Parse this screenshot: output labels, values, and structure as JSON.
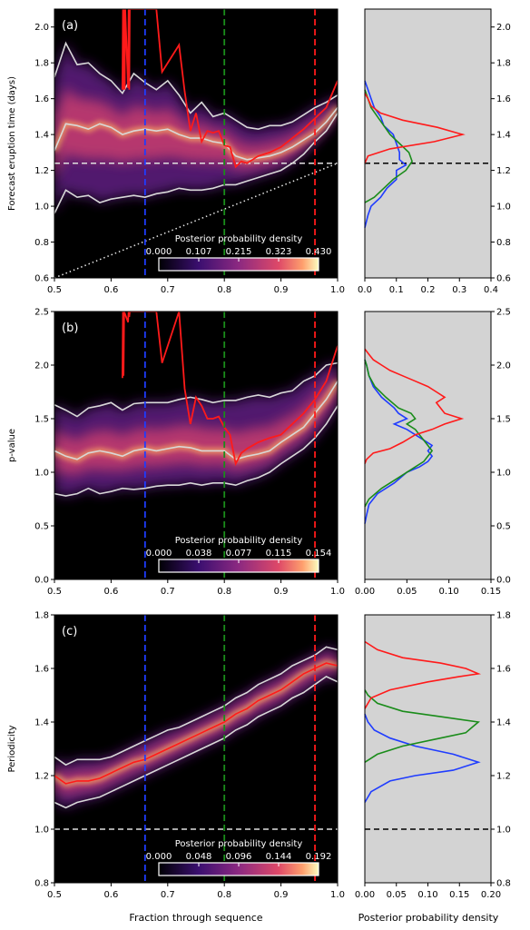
{
  "figure": {
    "xlabel_left": "Fraction through sequence",
    "xlabel_right": "Posterior probability density",
    "colorbar_title": "Posterior probability density"
  },
  "colors": {
    "background": "#000000",
    "side_background": "#d3d3d3",
    "red": "#ff1a1a",
    "blue": "#1f3cff",
    "green": "#1a8c1a",
    "white_band": "#d8d8d8"
  },
  "vlines": [
    {
      "x": 0.66,
      "color": "blue"
    },
    {
      "x": 0.8,
      "color": "green"
    },
    {
      "x": 0.96,
      "color": "red"
    }
  ],
  "chart_data": [
    {
      "type": "heatmap",
      "panel_label": "(a)",
      "ylabel": "Forecast eruption time (days)",
      "xlim": [
        0.5,
        1.0
      ],
      "ylim": [
        0.6,
        2.1
      ],
      "yticks": [
        "0.6",
        "0.8",
        "1.0",
        "1.2",
        "1.4",
        "1.6",
        "1.8",
        "2.0"
      ],
      "xticks": [
        "0.5",
        "0.6",
        "0.7",
        "0.8",
        "0.9",
        "1.0"
      ],
      "hline": 1.24,
      "dotted_diagonal": [
        [
          0.5,
          0.6
        ],
        [
          1.0,
          1.24
        ]
      ],
      "colorbar_ticks": [
        "0.000",
        "0.107",
        "0.215",
        "0.323",
        "0.430"
      ],
      "band": {
        "x": [
          0.5,
          0.52,
          0.54,
          0.56,
          0.58,
          0.6,
          0.62,
          0.64,
          0.66,
          0.68,
          0.7,
          0.72,
          0.74,
          0.76,
          0.78,
          0.8,
          0.82,
          0.84,
          0.86,
          0.88,
          0.9,
          0.92,
          0.94,
          0.96,
          0.98,
          1.0
        ],
        "upper": [
          1.72,
          1.91,
          1.79,
          1.8,
          1.74,
          1.7,
          1.63,
          1.74,
          1.69,
          1.65,
          1.7,
          1.62,
          1.52,
          1.58,
          1.5,
          1.52,
          1.48,
          1.44,
          1.43,
          1.45,
          1.45,
          1.47,
          1.51,
          1.55,
          1.58,
          1.62
        ],
        "median": [
          1.31,
          1.46,
          1.45,
          1.43,
          1.46,
          1.44,
          1.4,
          1.42,
          1.43,
          1.42,
          1.43,
          1.4,
          1.38,
          1.38,
          1.36,
          1.35,
          1.28,
          1.26,
          1.27,
          1.28,
          1.3,
          1.33,
          1.37,
          1.41,
          1.47,
          1.55
        ],
        "lower": [
          0.96,
          1.09,
          1.05,
          1.06,
          1.02,
          1.04,
          1.05,
          1.06,
          1.05,
          1.07,
          1.08,
          1.1,
          1.09,
          1.09,
          1.1,
          1.12,
          1.12,
          1.14,
          1.16,
          1.18,
          1.2,
          1.24,
          1.29,
          1.36,
          1.42,
          1.52
        ]
      },
      "red_line": {
        "x": [
          0.62,
          0.621,
          0.622,
          0.623,
          0.624,
          0.625,
          0.63,
          0.631,
          0.632,
          0.633,
          0.68,
          0.69,
          0.72,
          0.73,
          0.74,
          0.75,
          0.76,
          0.77,
          0.78,
          0.79,
          0.8,
          0.81,
          0.82,
          0.83,
          0.84,
          0.86,
          0.88,
          0.9,
          0.92,
          0.94,
          0.96,
          0.98,
          1.0
        ],
        "y": [
          1.65,
          2.1,
          1.65,
          2.1,
          1.65,
          2.1,
          1.66,
          2.1,
          1.65,
          2.1,
          2.1,
          1.75,
          1.9,
          1.64,
          1.42,
          1.52,
          1.36,
          1.42,
          1.41,
          1.42,
          1.34,
          1.33,
          1.22,
          1.25,
          1.24,
          1.28,
          1.3,
          1.33,
          1.38,
          1.43,
          1.49,
          1.55,
          1.7
        ]
      },
      "side": {
        "xlim": [
          0.0,
          0.4
        ],
        "xticks": [
          "0.0",
          "0.1",
          "0.2",
          "0.3",
          "0.4"
        ],
        "yticks": [
          "0.6",
          "0.8",
          "1.0",
          "1.2",
          "1.4",
          "1.6",
          "1.8",
          "2.0"
        ],
        "hline": 1.24,
        "blue": {
          "y": [
            0.88,
            0.95,
            1.0,
            1.05,
            1.1,
            1.15,
            1.2,
            1.23,
            1.26,
            1.3,
            1.35,
            1.4,
            1.45,
            1.5,
            1.55,
            1.6,
            1.65,
            1.7
          ],
          "x": [
            0.0,
            0.01,
            0.02,
            0.05,
            0.07,
            0.1,
            0.1,
            0.13,
            0.11,
            0.11,
            0.1,
            0.09,
            0.06,
            0.05,
            0.03,
            0.02,
            0.01,
            0.0
          ]
        },
        "green": {
          "y": [
            1.02,
            1.05,
            1.1,
            1.15,
            1.2,
            1.25,
            1.3,
            1.35,
            1.4,
            1.45,
            1.5,
            1.55,
            1.6,
            1.65
          ],
          "x": [
            0.0,
            0.03,
            0.06,
            0.09,
            0.13,
            0.15,
            0.14,
            0.11,
            0.08,
            0.06,
            0.04,
            0.02,
            0.01,
            0.0
          ]
        },
        "red": {
          "y": [
            1.24,
            1.28,
            1.32,
            1.36,
            1.4,
            1.44,
            1.48,
            1.52,
            1.56,
            1.6,
            1.63
          ],
          "x": [
            0.0,
            0.01,
            0.08,
            0.22,
            0.31,
            0.23,
            0.12,
            0.05,
            0.02,
            0.01,
            0.0
          ]
        }
      }
    },
    {
      "type": "heatmap",
      "panel_label": "(b)",
      "ylabel": "p-value",
      "xlim": [
        0.5,
        1.0
      ],
      "ylim": [
        0.0,
        2.5
      ],
      "yticks": [
        "0.0",
        "0.5",
        "1.0",
        "1.5",
        "2.0",
        "2.5"
      ],
      "xticks": [
        "0.5",
        "0.6",
        "0.7",
        "0.8",
        "0.9",
        "1.0"
      ],
      "colorbar_ticks": [
        "0.000",
        "0.038",
        "0.077",
        "0.115",
        "0.154"
      ],
      "band": {
        "x": [
          0.5,
          0.52,
          0.54,
          0.56,
          0.58,
          0.6,
          0.62,
          0.64,
          0.66,
          0.68,
          0.7,
          0.72,
          0.74,
          0.76,
          0.78,
          0.8,
          0.82,
          0.84,
          0.86,
          0.88,
          0.9,
          0.92,
          0.94,
          0.96,
          0.98,
          1.0
        ],
        "upper": [
          1.63,
          1.58,
          1.52,
          1.6,
          1.62,
          1.65,
          1.58,
          1.64,
          1.65,
          1.65,
          1.65,
          1.68,
          1.7,
          1.68,
          1.65,
          1.67,
          1.67,
          1.7,
          1.72,
          1.7,
          1.74,
          1.76,
          1.85,
          1.9,
          2.0,
          2.02
        ],
        "median": [
          1.2,
          1.15,
          1.12,
          1.18,
          1.2,
          1.18,
          1.15,
          1.2,
          1.22,
          1.2,
          1.22,
          1.24,
          1.23,
          1.2,
          1.2,
          1.2,
          1.12,
          1.15,
          1.17,
          1.2,
          1.28,
          1.35,
          1.42,
          1.55,
          1.68,
          1.85
        ],
        "lower": [
          0.8,
          0.78,
          0.8,
          0.85,
          0.8,
          0.82,
          0.85,
          0.84,
          0.85,
          0.87,
          0.88,
          0.88,
          0.9,
          0.88,
          0.9,
          0.9,
          0.88,
          0.92,
          0.95,
          1.0,
          1.08,
          1.15,
          1.22,
          1.32,
          1.45,
          1.62
        ]
      },
      "red_line": {
        "x": [
          0.62,
          0.621,
          0.622,
          0.623,
          0.63,
          0.631,
          0.632,
          0.633,
          0.68,
          0.69,
          0.72,
          0.73,
          0.74,
          0.75,
          0.76,
          0.77,
          0.78,
          0.79,
          0.8,
          0.81,
          0.82,
          0.83,
          0.84,
          0.86,
          0.88,
          0.9,
          0.92,
          0.94,
          0.96,
          0.98,
          1.0
        ],
        "y": [
          1.88,
          2.5,
          1.9,
          2.5,
          2.4,
          2.5,
          2.45,
          2.5,
          2.5,
          2.02,
          2.5,
          1.78,
          1.45,
          1.7,
          1.62,
          1.5,
          1.5,
          1.52,
          1.42,
          1.35,
          1.08,
          1.18,
          1.22,
          1.28,
          1.32,
          1.35,
          1.45,
          1.55,
          1.68,
          1.85,
          2.18
        ]
      },
      "side": {
        "xlim": [
          0.0,
          0.15
        ],
        "xticks": [
          "0.00",
          "0.05",
          "0.10",
          "0.15"
        ],
        "yticks": [
          "0.0",
          "0.5",
          "1.0",
          "1.5",
          "2.0",
          "2.5"
        ],
        "blue": {
          "y": [
            0.52,
            0.6,
            0.7,
            0.8,
            0.9,
            1.0,
            1.05,
            1.1,
            1.15,
            1.2,
            1.25,
            1.3,
            1.35,
            1.4,
            1.45,
            1.5,
            1.55,
            1.6,
            1.7,
            1.8,
            1.9,
            2.0,
            2.05
          ],
          "x": [
            0.0,
            0.002,
            0.005,
            0.015,
            0.035,
            0.05,
            0.065,
            0.075,
            0.08,
            0.075,
            0.08,
            0.07,
            0.06,
            0.05,
            0.035,
            0.05,
            0.04,
            0.035,
            0.02,
            0.01,
            0.005,
            0.002,
            0.0
          ]
        },
        "green": {
          "y": [
            0.68,
            0.75,
            0.85,
            0.95,
            1.05,
            1.1,
            1.15,
            1.2,
            1.25,
            1.3,
            1.35,
            1.4,
            1.45,
            1.5,
            1.55,
            1.6,
            1.7,
            1.8,
            1.9,
            2.0,
            2.05
          ],
          "x": [
            0.0,
            0.005,
            0.02,
            0.04,
            0.06,
            0.07,
            0.075,
            0.08,
            0.075,
            0.07,
            0.065,
            0.06,
            0.05,
            0.06,
            0.055,
            0.04,
            0.025,
            0.012,
            0.005,
            0.002,
            0.0
          ]
        },
        "red": {
          "y": [
            1.08,
            1.12,
            1.18,
            1.22,
            1.28,
            1.35,
            1.4,
            1.45,
            1.5,
            1.55,
            1.6,
            1.65,
            1.7,
            1.75,
            1.8,
            1.85,
            1.9,
            1.95,
            2.0,
            2.05,
            2.1,
            2.15
          ],
          "x": [
            0.0,
            0.002,
            0.01,
            0.03,
            0.045,
            0.06,
            0.08,
            0.095,
            0.115,
            0.095,
            0.09,
            0.085,
            0.095,
            0.085,
            0.075,
            0.06,
            0.045,
            0.03,
            0.02,
            0.01,
            0.005,
            0.0
          ]
        }
      }
    },
    {
      "type": "heatmap",
      "panel_label": "(c)",
      "ylabel": "Periodicity",
      "xlim": [
        0.5,
        1.0
      ],
      "ylim": [
        0.8,
        1.8
      ],
      "yticks": [
        "0.8",
        "1.0",
        "1.2",
        "1.4",
        "1.6",
        "1.8"
      ],
      "xticks": [
        "0.5",
        "0.6",
        "0.7",
        "0.8",
        "0.9",
        "1.0"
      ],
      "hline": 1.0,
      "colorbar_ticks": [
        "0.000",
        "0.048",
        "0.096",
        "0.144",
        "0.192"
      ],
      "band": {
        "x": [
          0.5,
          0.52,
          0.54,
          0.56,
          0.58,
          0.6,
          0.62,
          0.64,
          0.66,
          0.68,
          0.7,
          0.72,
          0.74,
          0.76,
          0.78,
          0.8,
          0.82,
          0.84,
          0.86,
          0.88,
          0.9,
          0.92,
          0.94,
          0.96,
          0.98,
          1.0
        ],
        "upper": [
          1.27,
          1.24,
          1.26,
          1.26,
          1.26,
          1.27,
          1.29,
          1.31,
          1.33,
          1.35,
          1.37,
          1.38,
          1.4,
          1.42,
          1.44,
          1.46,
          1.49,
          1.51,
          1.54,
          1.56,
          1.58,
          1.61,
          1.63,
          1.65,
          1.68,
          1.67
        ],
        "median": [
          1.2,
          1.17,
          1.18,
          1.18,
          1.19,
          1.21,
          1.23,
          1.25,
          1.26,
          1.28,
          1.3,
          1.32,
          1.34,
          1.36,
          1.38,
          1.4,
          1.43,
          1.45,
          1.48,
          1.5,
          1.52,
          1.55,
          1.58,
          1.6,
          1.62,
          1.61
        ],
        "lower": [
          1.1,
          1.08,
          1.1,
          1.11,
          1.12,
          1.14,
          1.16,
          1.18,
          1.2,
          1.22,
          1.24,
          1.26,
          1.28,
          1.3,
          1.32,
          1.34,
          1.37,
          1.39,
          1.42,
          1.44,
          1.46,
          1.49,
          1.51,
          1.54,
          1.57,
          1.55
        ]
      },
      "side": {
        "xlim": [
          0.0,
          0.2
        ],
        "xticks": [
          "0.00",
          "0.05",
          "0.10",
          "0.15",
          "0.20"
        ],
        "yticks": [
          "0.8",
          "1.0",
          "1.2",
          "1.4",
          "1.6",
          "1.8"
        ],
        "hline": 1.0,
        "blue": {
          "y": [
            1.1,
            1.14,
            1.18,
            1.2,
            1.22,
            1.25,
            1.28,
            1.31,
            1.34,
            1.37,
            1.4,
            1.43
          ],
          "x": [
            0.0,
            0.01,
            0.04,
            0.08,
            0.14,
            0.18,
            0.14,
            0.08,
            0.04,
            0.015,
            0.005,
            0.0
          ]
        },
        "green": {
          "y": [
            1.25,
            1.28,
            1.31,
            1.34,
            1.36,
            1.38,
            1.4,
            1.42,
            1.44,
            1.47,
            1.5,
            1.52
          ],
          "x": [
            0.0,
            0.02,
            0.06,
            0.12,
            0.16,
            0.17,
            0.18,
            0.12,
            0.06,
            0.02,
            0.005,
            0.0
          ]
        },
        "red": {
          "y": [
            1.45,
            1.49,
            1.52,
            1.55,
            1.57,
            1.58,
            1.6,
            1.62,
            1.64,
            1.67,
            1.7
          ],
          "x": [
            0.0,
            0.01,
            0.04,
            0.1,
            0.15,
            0.18,
            0.16,
            0.12,
            0.06,
            0.02,
            0.0
          ]
        }
      }
    }
  ]
}
